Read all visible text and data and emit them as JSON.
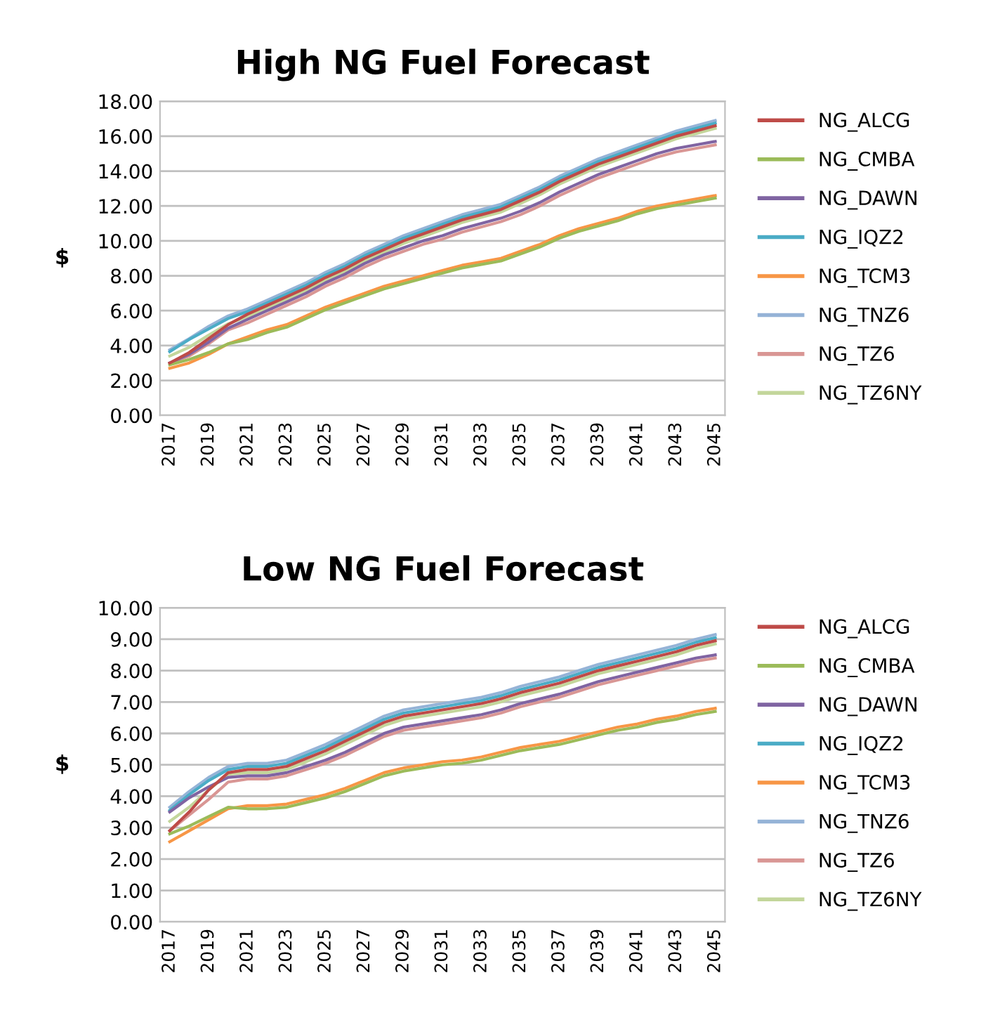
{
  "chart_data": [
    {
      "type": "line",
      "title": "High NG Fuel Forecast",
      "ylabel": "$",
      "x": [
        2017,
        2018,
        2019,
        2020,
        2021,
        2022,
        2023,
        2024,
        2025,
        2026,
        2027,
        2028,
        2029,
        2030,
        2031,
        2032,
        2033,
        2034,
        2035,
        2036,
        2037,
        2038,
        2039,
        2040,
        2041,
        2042,
        2043,
        2044,
        2045
      ],
      "xlim": [
        2016.5,
        2045.5
      ],
      "xticks": [
        2017,
        2019,
        2021,
        2023,
        2025,
        2027,
        2029,
        2031,
        2033,
        2035,
        2037,
        2039,
        2041,
        2043,
        2045
      ],
      "ylim": [
        0,
        18
      ],
      "yticks": [
        {
          "value": 0,
          "label": "0.00"
        },
        {
          "value": 2,
          "label": "2.00"
        },
        {
          "value": 4,
          "label": "4.00"
        },
        {
          "value": 6,
          "label": "6.00"
        },
        {
          "value": 8,
          "label": "8.00"
        },
        {
          "value": 10,
          "label": "10.00"
        },
        {
          "value": 12,
          "label": "12.00"
        },
        {
          "value": 14,
          "label": "14.00"
        },
        {
          "value": 16,
          "label": "16.00"
        },
        {
          "value": 18,
          "label": "18.00"
        }
      ],
      "grid": "y",
      "legend": "right",
      "marker": "none",
      "line_style": "solid",
      "series": [
        {
          "name": "NG_ALCG",
          "color": "#be4b48",
          "values": [
            3.0,
            3.6,
            4.4,
            5.2,
            5.8,
            6.3,
            6.8,
            7.3,
            7.9,
            8.4,
            9.0,
            9.5,
            10.0,
            10.4,
            10.8,
            11.2,
            11.5,
            11.8,
            12.3,
            12.8,
            13.4,
            13.9,
            14.4,
            14.8,
            15.2,
            15.6,
            16.0,
            16.3,
            16.6
          ]
        },
        {
          "name": "NG_CMBA",
          "color": "#9bbb59",
          "values": [
            2.9,
            3.2,
            3.6,
            4.1,
            4.35,
            4.75,
            5.05,
            5.55,
            6.05,
            6.45,
            6.85,
            7.25,
            7.55,
            7.85,
            8.15,
            8.45,
            8.65,
            8.85,
            9.25,
            9.65,
            10.15,
            10.55,
            10.85,
            11.15,
            11.55,
            11.85,
            12.05,
            12.25,
            12.45
          ]
        },
        {
          "name": "NG_DAWN",
          "color": "#8064a2",
          "values": [
            3.0,
            3.5,
            4.2,
            5.0,
            5.5,
            6.0,
            6.5,
            7.0,
            7.6,
            8.1,
            8.7,
            9.2,
            9.6,
            10.0,
            10.3,
            10.7,
            11.0,
            11.3,
            11.7,
            12.2,
            12.8,
            13.3,
            13.8,
            14.2,
            14.6,
            15.0,
            15.3,
            15.5,
            15.7
          ]
        },
        {
          "name": "NG_IQZ2",
          "color": "#4bacc6",
          "values": [
            3.65,
            4.35,
            4.95,
            5.55,
            5.95,
            6.45,
            6.95,
            7.45,
            8.05,
            8.55,
            9.15,
            9.65,
            10.15,
            10.55,
            10.95,
            11.35,
            11.65,
            11.95,
            12.45,
            12.95,
            13.55,
            14.05,
            14.55,
            14.95,
            15.35,
            15.75,
            16.15,
            16.45,
            16.75
          ]
        },
        {
          "name": "NG_TCM3",
          "color": "#f79646",
          "values": [
            2.7,
            3.0,
            3.5,
            4.1,
            4.5,
            4.9,
            5.2,
            5.7,
            6.2,
            6.6,
            7.0,
            7.4,
            7.7,
            8.0,
            8.3,
            8.6,
            8.8,
            9.0,
            9.4,
            9.8,
            10.3,
            10.7,
            11.0,
            11.3,
            11.7,
            12.0,
            12.2,
            12.4,
            12.6
          ]
        },
        {
          "name": "NG_TNZ6",
          "color": "#95b3d7",
          "values": [
            3.75,
            4.4,
            5.1,
            5.7,
            6.1,
            6.6,
            7.1,
            7.6,
            8.2,
            8.7,
            9.3,
            9.8,
            10.3,
            10.7,
            11.1,
            11.5,
            11.8,
            12.1,
            12.6,
            13.1,
            13.7,
            14.2,
            14.7,
            15.1,
            15.5,
            15.9,
            16.3,
            16.6,
            16.9
          ]
        },
        {
          "name": "NG_TZ6",
          "color": "#d99694",
          "values": [
            3.0,
            3.4,
            4.1,
            4.9,
            5.3,
            5.8,
            6.3,
            6.8,
            7.4,
            7.9,
            8.5,
            9.0,
            9.4,
            9.8,
            10.1,
            10.5,
            10.8,
            11.1,
            11.5,
            12.0,
            12.6,
            13.1,
            13.6,
            14.0,
            14.4,
            14.8,
            15.1,
            15.3,
            15.5
          ]
        },
        {
          "name": "NG_TZ6NY",
          "color": "#c3d69b",
          "values": [
            3.4,
            3.9,
            4.6,
            5.25,
            5.65,
            6.15,
            6.65,
            7.15,
            7.75,
            8.25,
            8.85,
            9.35,
            9.85,
            10.25,
            10.65,
            11.05,
            11.35,
            11.65,
            12.15,
            12.65,
            13.25,
            13.75,
            14.25,
            14.65,
            15.05,
            15.45,
            15.85,
            16.15,
            16.45
          ]
        }
      ]
    },
    {
      "type": "line",
      "title": "Low NG Fuel Forecast",
      "ylabel": "$",
      "x": [
        2017,
        2018,
        2019,
        2020,
        2021,
        2022,
        2023,
        2024,
        2025,
        2026,
        2027,
        2028,
        2029,
        2030,
        2031,
        2032,
        2033,
        2034,
        2035,
        2036,
        2037,
        2038,
        2039,
        2040,
        2041,
        2042,
        2043,
        2044,
        2045
      ],
      "xlim": [
        2016.5,
        2045.5
      ],
      "xticks": [
        2017,
        2019,
        2021,
        2023,
        2025,
        2027,
        2029,
        2031,
        2033,
        2035,
        2037,
        2039,
        2041,
        2043,
        2045
      ],
      "ylim": [
        0,
        10
      ],
      "yticks": [
        {
          "value": 0,
          "label": "0.00"
        },
        {
          "value": 1,
          "label": "1.00"
        },
        {
          "value": 2,
          "label": "2.00"
        },
        {
          "value": 3,
          "label": "3.00"
        },
        {
          "value": 4,
          "label": "4.00"
        },
        {
          "value": 5,
          "label": "5.00"
        },
        {
          "value": 6,
          "label": "6.00"
        },
        {
          "value": 7,
          "label": "7.00"
        },
        {
          "value": 8,
          "label": "8.00"
        },
        {
          "value": 9,
          "label": "9.00"
        },
        {
          "value": 10,
          "label": "10.00"
        }
      ],
      "grid": "y",
      "legend": "right",
      "marker": "none",
      "line_style": "solid",
      "series": [
        {
          "name": "NG_ALCG",
          "color": "#be4b48",
          "values": [
            2.9,
            3.5,
            4.2,
            4.75,
            4.85,
            4.85,
            4.95,
            5.2,
            5.45,
            5.75,
            6.05,
            6.35,
            6.55,
            6.65,
            6.75,
            6.85,
            6.95,
            7.1,
            7.3,
            7.45,
            7.6,
            7.8,
            8.0,
            8.15,
            8.3,
            8.45,
            8.6,
            8.8,
            8.95
          ]
        },
        {
          "name": "NG_CMBA",
          "color": "#9bbb59",
          "values": [
            2.8,
            3.05,
            3.35,
            3.65,
            3.6,
            3.6,
            3.65,
            3.8,
            3.95,
            4.15,
            4.4,
            4.65,
            4.8,
            4.9,
            5.0,
            5.05,
            5.15,
            5.3,
            5.45,
            5.55,
            5.65,
            5.8,
            5.95,
            6.1,
            6.2,
            6.35,
            6.45,
            6.6,
            6.7
          ]
        },
        {
          "name": "NG_DAWN",
          "color": "#8064a2",
          "values": [
            3.5,
            3.95,
            4.3,
            4.6,
            4.65,
            4.65,
            4.75,
            4.95,
            5.15,
            5.4,
            5.7,
            6.0,
            6.2,
            6.3,
            6.4,
            6.5,
            6.6,
            6.75,
            6.95,
            7.1,
            7.25,
            7.45,
            7.65,
            7.8,
            7.95,
            8.1,
            8.25,
            8.4,
            8.5
          ]
        },
        {
          "name": "NG_IQZ2",
          "color": "#4bacc6",
          "values": [
            3.55,
            4.05,
            4.5,
            4.85,
            4.95,
            4.95,
            5.05,
            5.3,
            5.55,
            5.85,
            6.15,
            6.45,
            6.65,
            6.75,
            6.85,
            6.95,
            7.05,
            7.2,
            7.4,
            7.55,
            7.7,
            7.9,
            8.1,
            8.25,
            8.4,
            8.55,
            8.7,
            8.9,
            9.05
          ]
        },
        {
          "name": "NG_TCM3",
          "color": "#f79646",
          "values": [
            2.55,
            2.9,
            3.25,
            3.6,
            3.7,
            3.7,
            3.75,
            3.9,
            4.05,
            4.25,
            4.5,
            4.75,
            4.9,
            5.0,
            5.1,
            5.15,
            5.25,
            5.4,
            5.55,
            5.65,
            5.75,
            5.9,
            6.05,
            6.2,
            6.3,
            6.45,
            6.55,
            6.7,
            6.8
          ]
        },
        {
          "name": "NG_TNZ6",
          "color": "#95b3d7",
          "values": [
            3.65,
            4.15,
            4.6,
            4.95,
            5.05,
            5.05,
            5.15,
            5.4,
            5.65,
            5.95,
            6.25,
            6.55,
            6.75,
            6.85,
            6.95,
            7.05,
            7.15,
            7.3,
            7.5,
            7.65,
            7.8,
            8.0,
            8.2,
            8.35,
            8.5,
            8.65,
            8.8,
            9.0,
            9.15
          ]
        },
        {
          "name": "NG_TZ6",
          "color": "#d99694",
          "values": [
            2.9,
            3.4,
            3.9,
            4.45,
            4.55,
            4.55,
            4.65,
            4.85,
            5.05,
            5.3,
            5.6,
            5.9,
            6.1,
            6.2,
            6.3,
            6.4,
            6.5,
            6.65,
            6.85,
            7.0,
            7.15,
            7.35,
            7.55,
            7.7,
            7.85,
            8.0,
            8.15,
            8.3,
            8.4
          ]
        },
        {
          "name": "NG_TZ6NY",
          "color": "#c3d69b",
          "values": [
            3.2,
            3.65,
            4.2,
            4.7,
            4.75,
            4.75,
            4.85,
            5.1,
            5.35,
            5.65,
            5.95,
            6.25,
            6.45,
            6.55,
            6.65,
            6.75,
            6.85,
            7.0,
            7.2,
            7.35,
            7.5,
            7.7,
            7.9,
            8.05,
            8.2,
            8.35,
            8.5,
            8.7,
            8.85
          ]
        }
      ]
    }
  ]
}
